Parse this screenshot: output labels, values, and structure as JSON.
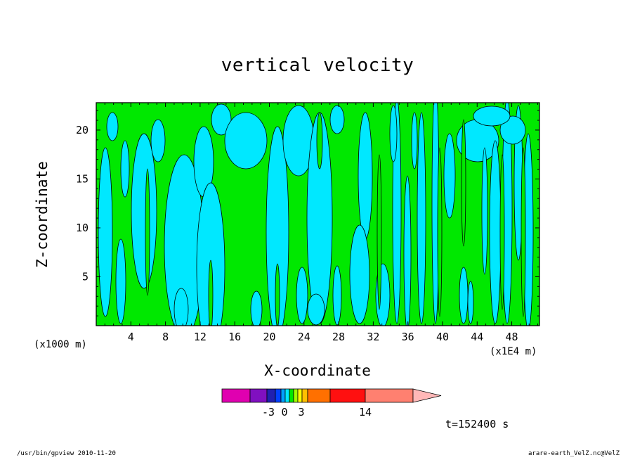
{
  "chart_data": {
    "type": "heatmap",
    "title": "vertical velocity",
    "xlabel": "X-coordinate",
    "ylabel": "Z-coordinate",
    "x_unit_label": "(x1E4 m)",
    "y_unit_label": "(x1000 m)",
    "xlim": [
      0,
      51.2
    ],
    "ylim": [
      0,
      22.8
    ],
    "x_ticks": [
      4,
      8,
      12,
      16,
      20,
      24,
      28,
      32,
      36,
      40,
      44,
      48
    ],
    "y_ticks": [
      5,
      10,
      15,
      20
    ],
    "x_tick_labels": [
      "4",
      "8",
      "12",
      "16",
      "20",
      "24",
      "28",
      "32",
      "36",
      "40",
      "44",
      "48"
    ],
    "y_tick_labels": [
      "5",
      "10",
      "15",
      "20"
    ],
    "grid": false,
    "fill_colors": {
      "negative": "#00e8ff",
      "positive": "#00e800"
    },
    "colorbar": {
      "placement": "bottom",
      "colors": [
        "#e000b0",
        "#8010c0",
        "#2020b0",
        "#0040ff",
        "#00a0ff",
        "#00e8ff",
        "#00e800",
        "#a0ff00",
        "#ffff00",
        "#ffc000",
        "#ff7000",
        "#ff1010",
        "#ff8070",
        "#ffb8b8"
      ],
      "tick_labels": [
        "-3",
        "0",
        "3",
        "14"
      ]
    },
    "time_label": "t=152400 s"
  },
  "footer": {
    "left": "/usr/bin/gpview   2010-11-20",
    "right": "arare-earth_VelZ.nc@VelZ"
  }
}
